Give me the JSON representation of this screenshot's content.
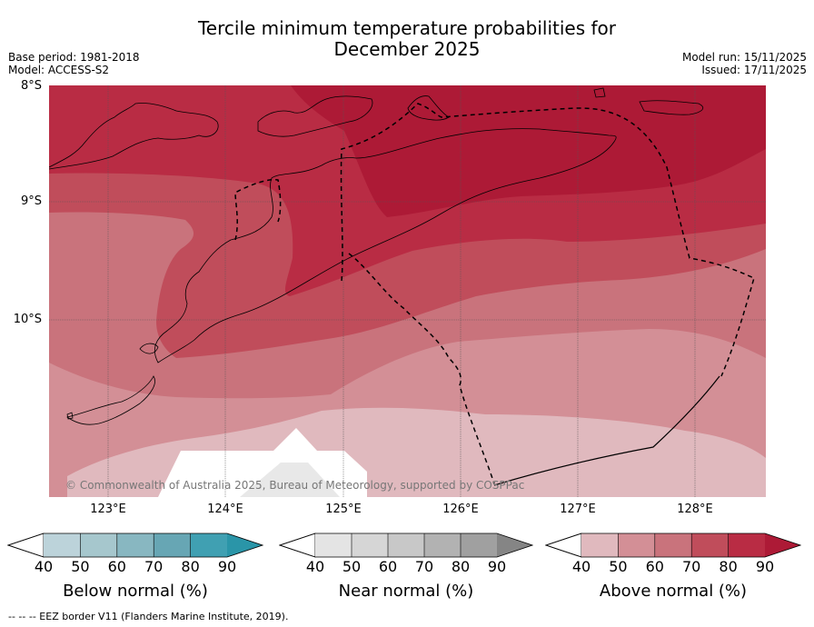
{
  "title_line1": "Tercile minimum temperature probabilities for",
  "title_line2": "December 2025",
  "meta_left": {
    "base_period": "Base period: 1981-2018",
    "model": "Model: ACCESS-S2"
  },
  "meta_right": {
    "model_run": "Model run: 15/11/2025",
    "issued": "Issued: 17/11/2025"
  },
  "latitudes": [
    "8°S",
    "9°S",
    "10°S"
  ],
  "longitudes": [
    "123°E",
    "124°E",
    "125°E",
    "126°E",
    "127°E",
    "128°E"
  ],
  "copyright": "© Commonwealth of Australia 2025, Bureau of Meteorology, supported by COSPPac",
  "colorbars": [
    {
      "title": "Below normal (%)",
      "ticks": [
        "40",
        "50",
        "60",
        "70",
        "80",
        "90"
      ],
      "colors": [
        "#bcd3da",
        "#a6c7cd",
        "#88b7c1",
        "#67a6b4",
        "#40a0b2",
        "#2a95a8"
      ]
    },
    {
      "title": "Near normal (%)",
      "ticks": [
        "40",
        "50",
        "60",
        "70",
        "80",
        "90"
      ],
      "colors": [
        "#e4e4e4",
        "#d6d6d6",
        "#c8c8c8",
        "#b2b2b2",
        "#a0a0a0",
        "#858585"
      ]
    },
    {
      "title": "Above normal (%)",
      "ticks": [
        "40",
        "50",
        "60",
        "70",
        "80",
        "90"
      ],
      "colors": [
        "#e0b9be",
        "#d38f96",
        "#c9737c",
        "#c04d5b",
        "#b92c44",
        "#ad1a36"
      ]
    }
  ],
  "footnote": "--  --  -- EEZ border V11 (Flanders Marine Institute, 2019)."
}
